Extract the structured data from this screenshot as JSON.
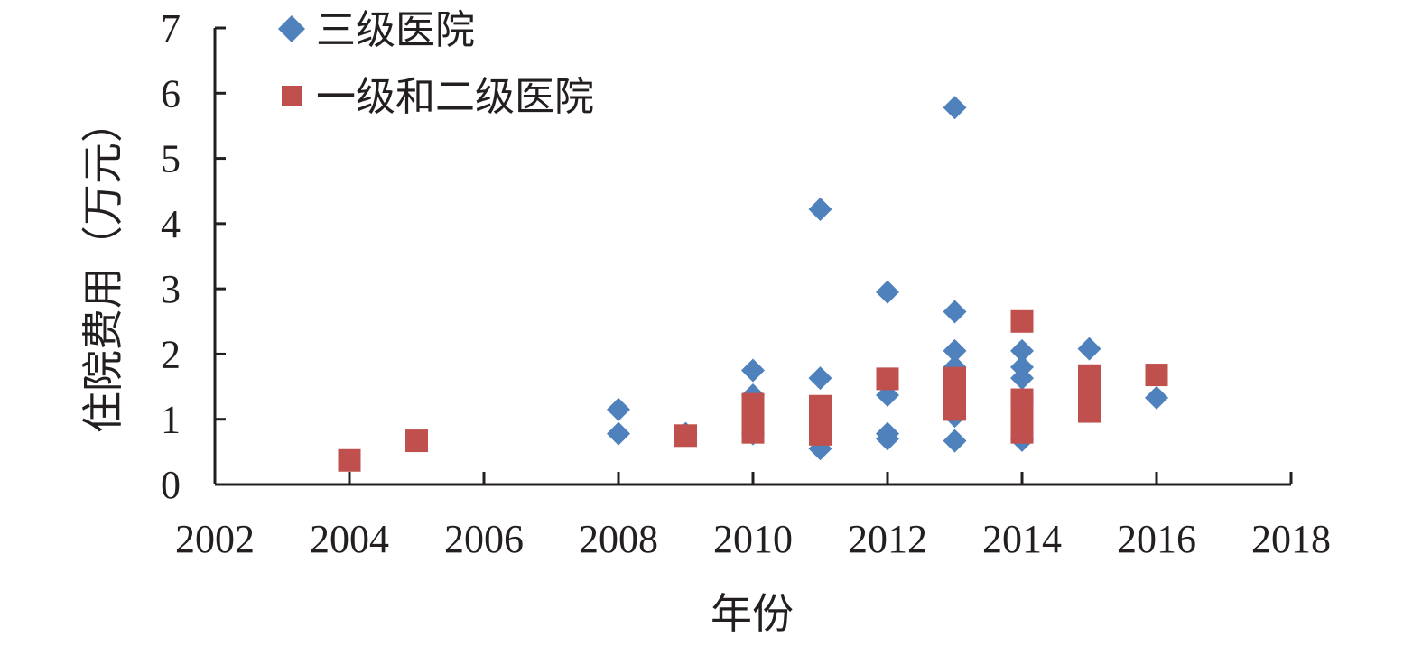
{
  "chart_data": {
    "type": "scatter",
    "xlabel": "年份",
    "ylabel": "住院费用（万元）",
    "xlim": [
      2002,
      2018
    ],
    "ylim": [
      0,
      7
    ],
    "x_ticks": [
      2002,
      2004,
      2006,
      2008,
      2010,
      2012,
      2014,
      2016,
      2018
    ],
    "y_ticks": [
      0,
      1,
      2,
      3,
      4,
      5,
      6,
      7
    ],
    "legend_position": "top-left",
    "grid": false,
    "series": [
      {
        "name": "三级医院",
        "marker": "diamond",
        "color": "#4f81bd",
        "points": [
          [
            2008,
            1.15
          ],
          [
            2008,
            0.78
          ],
          [
            2009,
            0.78
          ],
          [
            2010,
            1.75
          ],
          [
            2010,
            1.37
          ],
          [
            2010,
            0.78
          ],
          [
            2011,
            4.22
          ],
          [
            2011,
            1.63
          ],
          [
            2011,
            0.55
          ],
          [
            2012,
            2.95
          ],
          [
            2012,
            1.37
          ],
          [
            2012,
            0.78
          ],
          [
            2012,
            0.7
          ],
          [
            2013,
            5.78
          ],
          [
            2013,
            2.65
          ],
          [
            2013,
            2.05
          ],
          [
            2013,
            1.8
          ],
          [
            2013,
            1.05
          ],
          [
            2013,
            0.67
          ],
          [
            2014,
            2.05
          ],
          [
            2014,
            1.8
          ],
          [
            2014,
            1.63
          ],
          [
            2014,
            1.3
          ],
          [
            2014,
            0.68
          ],
          [
            2015,
            2.08
          ],
          [
            2016,
            1.33
          ]
        ]
      },
      {
        "name": "一级和二级医院",
        "marker": "square",
        "color": "#c0504d",
        "points": [
          [
            2004,
            0.37
          ],
          [
            2005,
            0.67
          ],
          [
            2009,
            0.75
          ],
          [
            2010,
            1.23
          ],
          [
            2010,
            1.13
          ],
          [
            2010,
            0.8
          ],
          [
            2011,
            1.2
          ],
          [
            2011,
            1.07
          ],
          [
            2011,
            0.93
          ],
          [
            2011,
            0.77
          ],
          [
            2012,
            1.62
          ],
          [
            2013,
            1.63
          ],
          [
            2013,
            1.5
          ],
          [
            2013,
            1.32
          ],
          [
            2013,
            1.15
          ],
          [
            2014,
            2.5
          ],
          [
            2014,
            1.3
          ],
          [
            2014,
            1.23
          ],
          [
            2014,
            1.12
          ],
          [
            2014,
            0.8
          ],
          [
            2015,
            1.67
          ],
          [
            2015,
            1.52
          ],
          [
            2015,
            1.35
          ],
          [
            2015,
            1.12
          ],
          [
            2016,
            1.68
          ]
        ]
      }
    ]
  }
}
